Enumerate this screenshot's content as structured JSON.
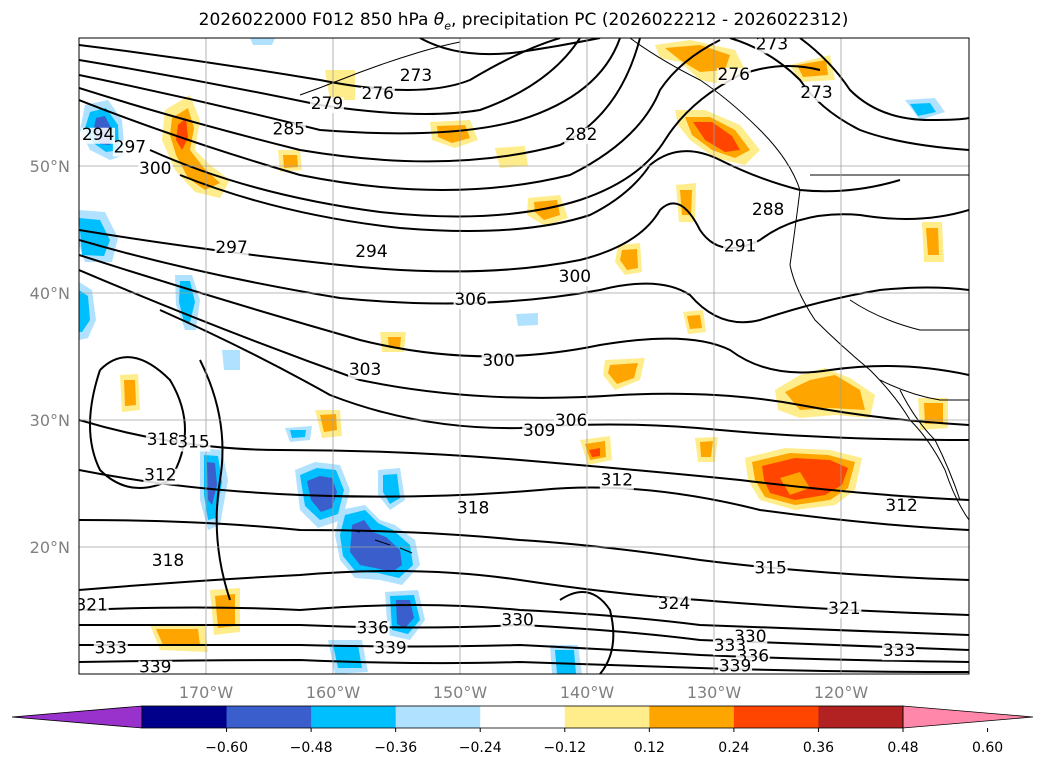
{
  "title": {
    "run": "2026022000",
    "forecast": "F012",
    "level": "850 hPa",
    "theta_symbol": "θ",
    "theta_sub": "e",
    "rest": ", precipitation PC (2026022212 - 2026022312)"
  },
  "map": {
    "lon_range": [
      -180,
      -110
    ],
    "lat_range": [
      10,
      60
    ],
    "lat_labels": [
      "20°N",
      "30°N",
      "40°N",
      "50°N"
    ],
    "lat_values": [
      20,
      30,
      40,
      50
    ],
    "lon_labels": [
      "170°W",
      "160°W",
      "150°W",
      "140°W",
      "130°W",
      "120°W"
    ],
    "lon_values": [
      -170,
      -160,
      -150,
      -140,
      -130,
      -120
    ],
    "grid": true
  },
  "contour_labels": [
    {
      "text": "273",
      "lon": -153.5,
      "lat": 56.6
    },
    {
      "text": "276",
      "lon": -156.5,
      "lat": 55.2
    },
    {
      "text": "279",
      "lon": -160.5,
      "lat": 54.4
    },
    {
      "text": "285",
      "lon": -163.5,
      "lat": 52.4
    },
    {
      "text": "282",
      "lon": -140.5,
      "lat": 52.0
    },
    {
      "text": "273",
      "lon": -125.5,
      "lat": 59.1
    },
    {
      "text": "276",
      "lon": -128.5,
      "lat": 56.7
    },
    {
      "text": "273",
      "lon": -122.0,
      "lat": 55.3
    },
    {
      "text": "294",
      "lon": -178.5,
      "lat": 52.0
    },
    {
      "text": "297",
      "lon": -176.0,
      "lat": 51.0
    },
    {
      "text": "300",
      "lon": -174.0,
      "lat": 49.3
    },
    {
      "text": "288",
      "lon": -125.8,
      "lat": 46.1
    },
    {
      "text": "291",
      "lon": -128.0,
      "lat": 43.2
    },
    {
      "text": "297",
      "lon": -168.0,
      "lat": 43.1
    },
    {
      "text": "294",
      "lon": -157.0,
      "lat": 42.8
    },
    {
      "text": "300",
      "lon": -141.0,
      "lat": 40.8
    },
    {
      "text": "306",
      "lon": -149.2,
      "lat": 39.0
    },
    {
      "text": "300",
      "lon": -147.0,
      "lat": 34.2
    },
    {
      "text": "303",
      "lon": -157.5,
      "lat": 33.5
    },
    {
      "text": "309",
      "lon": -143.8,
      "lat": 28.7
    },
    {
      "text": "306",
      "lon": -141.3,
      "lat": 29.5
    },
    {
      "text": "318",
      "lon": -173.4,
      "lat": 28.0
    },
    {
      "text": "315",
      "lon": -171.0,
      "lat": 27.8
    },
    {
      "text": "312",
      "lon": -173.6,
      "lat": 25.2
    },
    {
      "text": "312",
      "lon": -137.7,
      "lat": 24.8
    },
    {
      "text": "318",
      "lon": -149.0,
      "lat": 22.6
    },
    {
      "text": "312",
      "lon": -115.3,
      "lat": 22.8
    },
    {
      "text": "318",
      "lon": -173.0,
      "lat": 18.5
    },
    {
      "text": "315",
      "lon": -125.6,
      "lat": 17.9
    },
    {
      "text": "321",
      "lon": -179.0,
      "lat": 15.0
    },
    {
      "text": "324",
      "lon": -133.2,
      "lat": 15.1
    },
    {
      "text": "321",
      "lon": -119.8,
      "lat": 14.7
    },
    {
      "text": "336",
      "lon": -156.9,
      "lat": 13.2
    },
    {
      "text": "330",
      "lon": -145.5,
      "lat": 13.8
    },
    {
      "text": "339",
      "lon": -155.5,
      "lat": 11.6
    },
    {
      "text": "333",
      "lon": -177.5,
      "lat": 11.6
    },
    {
      "text": "330",
      "lon": -127.2,
      "lat": 12.5
    },
    {
      "text": "333",
      "lon": -128.8,
      "lat": 11.8
    },
    {
      "text": "336",
      "lon": -127.0,
      "lat": 11.0
    },
    {
      "text": "339",
      "lon": -128.4,
      "lat": 10.2
    },
    {
      "text": "339",
      "lon": -174.0,
      "lat": 10.1
    },
    {
      "text": "333",
      "lon": -115.5,
      "lat": 11.4
    }
  ],
  "colorbar": {
    "ticks": [
      "−0.60",
      "−0.48",
      "−0.36",
      "−0.24",
      "−0.12",
      "0.12",
      "0.24",
      "0.36",
      "0.48",
      "0.60"
    ],
    "colors": [
      "#9932CC",
      "#00008B",
      "#3A5FCD",
      "#00BFFF",
      "#B0E2FF",
      "#FFFFFF",
      "#FFEC8B",
      "#FFA500",
      "#FF4500",
      "#B22222",
      "#FF88AA"
    ],
    "extend": "both"
  }
}
